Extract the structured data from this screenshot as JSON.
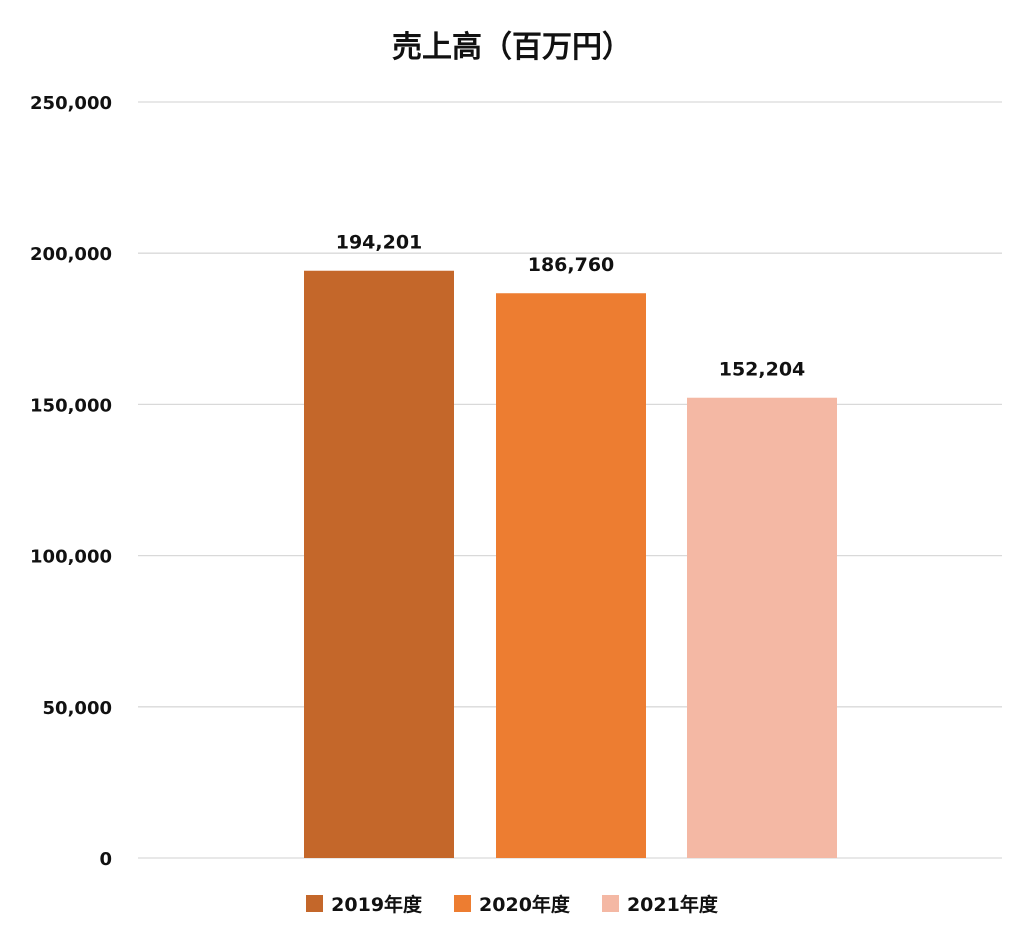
{
  "chart_data": {
    "type": "bar",
    "title": "売上高（百万円）",
    "categories": [
      "2019年度",
      "2020年度",
      "2021年度"
    ],
    "values": [
      194201,
      186760,
      152204
    ],
    "value_labels": [
      "194,201",
      "186,760",
      "152,204"
    ],
    "colors": [
      "#C4672A",
      "#ED7D31",
      "#F4B8A4"
    ],
    "ylim": [
      0,
      250000
    ],
    "yticks": [
      0,
      50000,
      100000,
      150000,
      200000,
      250000
    ],
    "ytick_labels": [
      "0",
      "50,000",
      "100,000",
      "150,000",
      "200,000",
      "250,000"
    ],
    "grid": true,
    "legend_position": "bottom"
  }
}
